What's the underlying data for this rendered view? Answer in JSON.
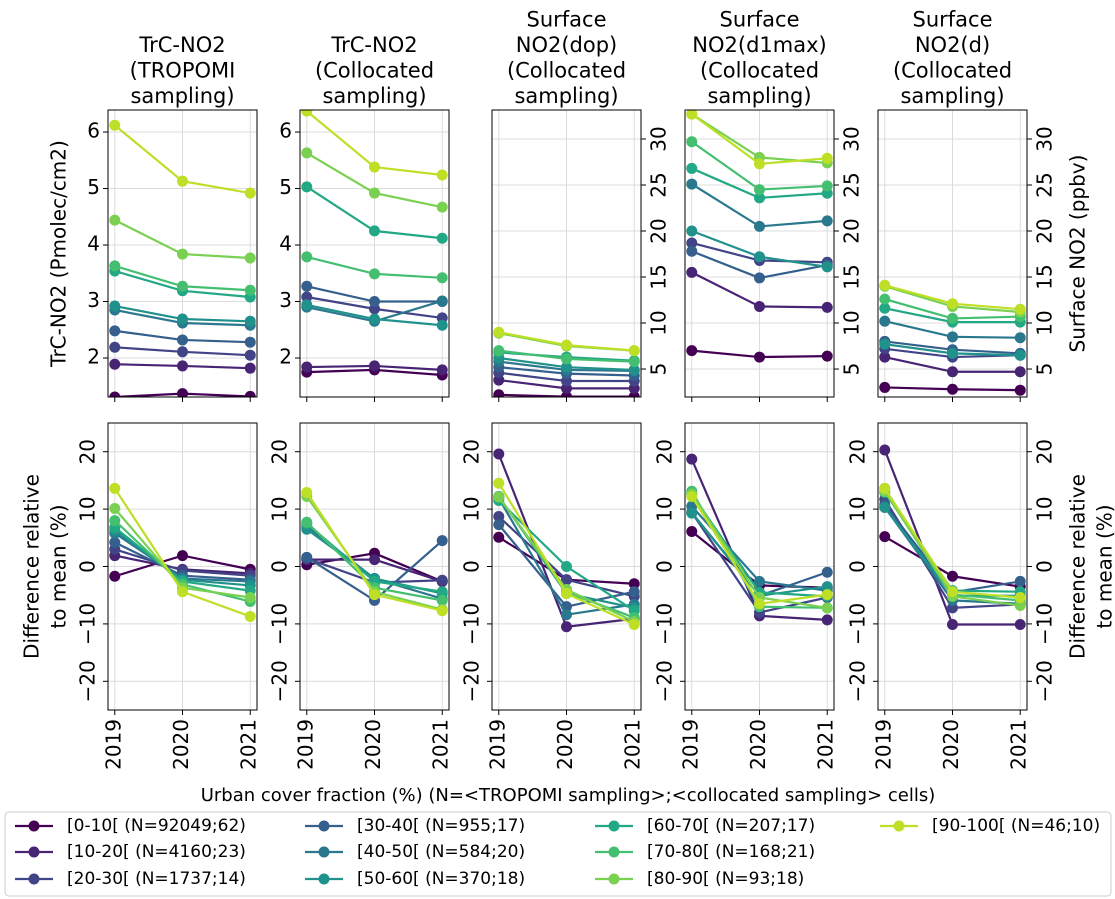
{
  "legend": [
    {
      "name": "[0-10[ (N=92049;62)",
      "color": "#440154"
    },
    {
      "name": "[10-20[ (N=4160;23)",
      "color": "#482475"
    },
    {
      "name": "[20-30[ (N=1737;14)",
      "color": "#414487"
    },
    {
      "name": "[30-40[ (N=955;17)",
      "color": "#355f8d"
    },
    {
      "name": "[40-50[ (N=584;20)",
      "color": "#2a788e"
    },
    {
      "name": "[50-60[ (N=370;18)",
      "color": "#21918c"
    },
    {
      "name": "[60-70[ (N=207;17)",
      "color": "#22a884"
    },
    {
      "name": "[70-80[ (N=168;21)",
      "color": "#44bf70"
    },
    {
      "name": "[80-90[ (N=93;18)",
      "color": "#7ad151"
    },
    {
      "name": "[90-100[ (N=46;10)",
      "color": "#bddf26"
    }
  ],
  "x_label": "Urban cover fraction (%) (N=<TROPOMI sampling>;<collocated sampling> cells)",
  "chart_data": [
    {
      "type": "line",
      "title": [
        "TrC-NO2",
        "(TROPOMI",
        "sampling)"
      ],
      "ylabel": [
        "TrC-NO2 (Pmolec/cm2)"
      ],
      "ylabel_side": "left",
      "x": [
        2019,
        2020,
        2021
      ],
      "xlim": [
        2018.9,
        2021.1
      ],
      "xticks": [
        2019,
        2020,
        2021
      ],
      "show_xtick_labels": false,
      "ylim": [
        1.31,
        6.39
      ],
      "yticks": [
        2,
        3,
        4,
        5,
        6
      ],
      "ytick_side": "left",
      "ytick_rotation": 0,
      "grid": true,
      "series": [
        {
          "values": [
            1.31,
            1.37,
            1.32
          ]
        },
        {
          "values": [
            1.89,
            1.86,
            1.82
          ]
        },
        {
          "values": [
            2.19,
            2.11,
            2.05
          ]
        },
        {
          "values": [
            2.48,
            2.32,
            2.28
          ]
        },
        {
          "values": [
            2.85,
            2.62,
            2.58
          ]
        },
        {
          "values": [
            2.92,
            2.69,
            2.65
          ]
        },
        {
          "values": [
            3.54,
            3.19,
            3.08
          ]
        },
        {
          "values": [
            3.63,
            3.27,
            3.2
          ]
        },
        {
          "values": [
            4.44,
            3.84,
            3.77
          ]
        },
        {
          "values": [
            6.12,
            5.13,
            4.92
          ]
        }
      ]
    },
    {
      "type": "line",
      "title": [
        "TrC-NO2",
        "(Collocated",
        "sampling)"
      ],
      "x": [
        2019,
        2020,
        2021
      ],
      "xlim": [
        2018.9,
        2021.1
      ],
      "xticks": [
        2019,
        2020,
        2021
      ],
      "show_xtick_labels": false,
      "ylim": [
        1.31,
        6.39
      ],
      "yticks": [
        2,
        3,
        4,
        5,
        6
      ],
      "ytick_side": "left",
      "ytick_rotation": 0,
      "grid": true,
      "series": [
        {
          "values": [
            1.75,
            1.79,
            1.7
          ]
        },
        {
          "values": [
            1.84,
            1.86,
            1.79
          ]
        },
        {
          "values": [
            3.08,
            2.87,
            2.71
          ]
        },
        {
          "values": [
            3.27,
            3.0,
            3.0
          ]
        },
        {
          "values": [
            2.9,
            2.65,
            3.01
          ]
        },
        {
          "values": [
            2.94,
            2.69,
            2.58
          ]
        },
        {
          "values": [
            5.03,
            4.25,
            4.12
          ]
        },
        {
          "values": [
            3.79,
            3.49,
            3.42
          ]
        },
        {
          "values": [
            5.63,
            4.92,
            4.67
          ]
        },
        {
          "values": [
            6.37,
            5.38,
            5.24
          ]
        }
      ]
    },
    {
      "type": "line",
      "title": [
        "Surface",
        "NO2(dop)",
        "(Collocated",
        "sampling)"
      ],
      "x": [
        2019,
        2020,
        2021
      ],
      "xlim": [
        2018.9,
        2021.1
      ],
      "xticks": [
        2019,
        2020,
        2021
      ],
      "show_xtick_labels": false,
      "ylim": [
        1.96,
        33.15
      ],
      "yticks": [
        5,
        10,
        15,
        20,
        25,
        30
      ],
      "ytick_side": "right",
      "ytick_rotation": -90,
      "grid": true,
      "series": [
        {
          "values": [
            2.2,
            2.0,
            2.0
          ]
        },
        {
          "values": [
            3.8,
            2.9,
            2.9
          ]
        },
        {
          "values": [
            4.6,
            3.7,
            3.7
          ]
        },
        {
          "values": [
            5.2,
            4.5,
            4.3
          ]
        },
        {
          "values": [
            5.8,
            4.9,
            4.8
          ]
        },
        {
          "values": [
            6.2,
            5.2,
            4.9
          ]
        },
        {
          "values": [
            6.8,
            6.3,
            5.9
          ]
        },
        {
          "values": [
            7.0,
            6.1,
            5.8
          ]
        },
        {
          "values": [
            8.9,
            7.5,
            7.0
          ]
        },
        {
          "values": [
            9.0,
            7.6,
            7.0
          ]
        }
      ]
    },
    {
      "type": "line",
      "title": [
        "Surface",
        "NO2(d1max)",
        "(Collocated",
        "sampling)"
      ],
      "x": [
        2019,
        2020,
        2021
      ],
      "xlim": [
        2018.9,
        2021.1
      ],
      "xticks": [
        2019,
        2020,
        2021
      ],
      "show_xtick_labels": false,
      "ylim": [
        1.96,
        33.15
      ],
      "yticks": [
        5,
        10,
        15,
        20,
        25,
        30
      ],
      "ytick_side": "right",
      "ytick_rotation": -90,
      "grid": true,
      "series": [
        {
          "values": [
            7.0,
            6.3,
            6.4
          ]
        },
        {
          "values": [
            15.5,
            11.8,
            11.7
          ]
        },
        {
          "values": [
            18.7,
            16.8,
            16.6
          ]
        },
        {
          "values": [
            17.8,
            14.9,
            16.3
          ]
        },
        {
          "values": [
            25.1,
            20.5,
            21.1
          ]
        },
        {
          "values": [
            20.0,
            17.2,
            16.1
          ]
        },
        {
          "values": [
            26.8,
            23.6,
            24.1
          ]
        },
        {
          "values": [
            29.7,
            24.5,
            24.9
          ]
        },
        {
          "values": [
            32.7,
            28.0,
            27.4
          ]
        },
        {
          "values": [
            32.7,
            27.3,
            27.9
          ]
        }
      ]
    },
    {
      "type": "line",
      "title": [
        "Surface",
        "NO2(d)",
        "(Collocated",
        "sampling)"
      ],
      "ylabel": [
        "Surface NO2 (ppbv)"
      ],
      "ylabel_side": "right",
      "x": [
        2019,
        2020,
        2021
      ],
      "xlim": [
        2018.9,
        2021.1
      ],
      "xticks": [
        2019,
        2020,
        2021
      ],
      "show_xtick_labels": false,
      "ylim": [
        1.96,
        33.15
      ],
      "yticks": [
        5,
        10,
        15,
        20,
        25,
        30
      ],
      "ytick_side": "right",
      "ytick_rotation": -90,
      "grid": true,
      "series": [
        {
          "values": [
            3.0,
            2.8,
            2.7
          ]
        },
        {
          "values": [
            6.3,
            4.7,
            4.7
          ]
        },
        {
          "values": [
            7.2,
            6.3,
            6.5
          ]
        },
        {
          "values": [
            8.0,
            7.1,
            6.7
          ]
        },
        {
          "values": [
            10.2,
            8.5,
            8.4
          ]
        },
        {
          "values": [
            7.7,
            6.7,
            6.5
          ]
        },
        {
          "values": [
            11.6,
            10.1,
            10.1
          ]
        },
        {
          "values": [
            12.6,
            10.5,
            10.7
          ]
        },
        {
          "values": [
            14.0,
            11.8,
            11.2
          ]
        },
        {
          "values": [
            14.1,
            12.1,
            11.5
          ]
        }
      ]
    },
    {
      "type": "line",
      "ylabel": [
        "Difference relative",
        "to mean (%)"
      ],
      "ylabel_side": "left",
      "x": [
        2019,
        2020,
        2021
      ],
      "xlim": [
        2018.9,
        2021.1
      ],
      "xticks": [
        2019,
        2020,
        2021
      ],
      "show_xtick_labels": true,
      "ylim": [
        -25,
        25
      ],
      "yticks": [
        {
          "value": -20,
          "label": "−20"
        },
        {
          "value": -10,
          "label": "−10"
        },
        0,
        10,
        20
      ],
      "ytick_side": "left",
      "ytick_rotation": -90,
      "grid": true,
      "series": [
        {
          "values": [
            -1.7,
            1.9,
            -0.5
          ]
        },
        {
          "values": [
            1.9,
            -0.5,
            -1.2
          ]
        },
        {
          "values": [
            3.0,
            -0.7,
            -1.6
          ]
        },
        {
          "values": [
            4.2,
            -1.6,
            -2.3
          ]
        },
        {
          "values": [
            5.8,
            -2.1,
            -2.6
          ]
        },
        {
          "values": [
            6.3,
            -2.3,
            -3.3
          ]
        },
        {
          "values": [
            6.8,
            -2.6,
            -4.2
          ]
        },
        {
          "values": [
            8.0,
            -3.1,
            -6.1
          ]
        },
        {
          "values": [
            10.1,
            -3.7,
            -5.4
          ]
        },
        {
          "values": [
            13.6,
            -4.4,
            -8.7
          ]
        }
      ]
    },
    {
      "type": "line",
      "x": [
        2019,
        2020,
        2021
      ],
      "xlim": [
        2018.9,
        2021.1
      ],
      "xticks": [
        2019,
        2020,
        2021
      ],
      "show_xtick_labels": true,
      "ylim": [
        -25,
        25
      ],
      "yticks": [
        {
          "value": -20,
          "label": "−20"
        },
        {
          "value": -10,
          "label": "−10"
        },
        0,
        10,
        20
      ],
      "ytick_side": "left",
      "ytick_rotation": -90,
      "grid": true,
      "series": [
        {
          "values": [
            0.3,
            2.3,
            -2.6
          ]
        },
        {
          "values": [
            1.2,
            1.2,
            -2.6
          ]
        },
        {
          "values": [
            1.4,
            -2.8,
            -2.4
          ]
        },
        {
          "values": [
            1.6,
            -5.9,
            4.5
          ]
        },
        {
          "values": [
            7.0,
            -2.1,
            -5.6
          ]
        },
        {
          "values": [
            6.5,
            -2.1,
            -4.7
          ]
        },
        {
          "values": [
            7.5,
            -2.6,
            -4.4
          ]
        },
        {
          "values": [
            7.7,
            -3.7,
            -5.9
          ]
        },
        {
          "values": [
            12.2,
            -4.4,
            -7.5
          ]
        },
        {
          "values": [
            12.9,
            -4.9,
            -7.7
          ]
        }
      ]
    },
    {
      "type": "line",
      "x": [
        2019,
        2020,
        2021
      ],
      "xlim": [
        2018.9,
        2021.1
      ],
      "xticks": [
        2019,
        2020,
        2021
      ],
      "show_xtick_labels": true,
      "ylim": [
        -25,
        25
      ],
      "yticks": [
        {
          "value": -20,
          "label": "−20"
        },
        {
          "value": -10,
          "label": "−10"
        },
        0,
        10,
        20
      ],
      "ytick_side": "left",
      "ytick_rotation": -90,
      "grid": true,
      "series": [
        {
          "values": [
            5.1,
            -2.3,
            -3.0
          ]
        },
        {
          "values": [
            19.6,
            -10.5,
            -9.1
          ]
        },
        {
          "values": [
            8.7,
            -2.3,
            -5.2
          ]
        },
        {
          "values": [
            7.3,
            -7.0,
            -4.4
          ]
        },
        {
          "values": [
            11.9,
            -8.4,
            -6.6
          ]
        },
        {
          "values": [
            12.2,
            -4.7,
            -7.2
          ]
        },
        {
          "values": [
            11.5,
            0,
            -7.7
          ]
        },
        {
          "values": [
            12.2,
            -4.5,
            -8.9
          ]
        },
        {
          "values": [
            12.1,
            -4.0,
            -9.6
          ]
        },
        {
          "values": [
            14.5,
            -4.7,
            -10.1
          ]
        }
      ]
    },
    {
      "type": "line",
      "x": [
        2019,
        2020,
        2021
      ],
      "xlim": [
        2018.9,
        2021.1
      ],
      "xticks": [
        2019,
        2020,
        2021
      ],
      "show_xtick_labels": true,
      "ylim": [
        -25,
        25
      ],
      "yticks": [
        {
          "value": -20,
          "label": "−20"
        },
        {
          "value": -10,
          "label": "−10"
        },
        0,
        10,
        20
      ],
      "ytick_side": "left",
      "ytick_rotation": -90,
      "grid": true,
      "series": [
        {
          "values": [
            6.1,
            -3.3,
            -3.7
          ]
        },
        {
          "values": [
            18.7,
            -8.6,
            -9.3
          ]
        },
        {
          "values": [
            9.4,
            -8.0,
            -5.4
          ]
        },
        {
          "values": [
            9.4,
            -5.1,
            -1.0
          ]
        },
        {
          "values": [
            10.5,
            -2.6,
            -4.2
          ]
        },
        {
          "values": [
            9.3,
            -5.1,
            -3.5
          ]
        },
        {
          "values": [
            12.6,
            -4.5,
            -5.2
          ]
        },
        {
          "values": [
            13.1,
            -7.0,
            -7.2
          ]
        },
        {
          "values": [
            12.6,
            -5.4,
            -7.2
          ]
        },
        {
          "values": [
            12.2,
            -6.5,
            -4.9
          ]
        }
      ]
    },
    {
      "type": "line",
      "ylabel": [
        "Difference relative",
        "to mean (%)"
      ],
      "ylabel_side": "right",
      "x": [
        2019,
        2020,
        2021
      ],
      "xlim": [
        2018.9,
        2021.1
      ],
      "xticks": [
        2019,
        2020,
        2021
      ],
      "show_xtick_labels": true,
      "ylim": [
        -25,
        25
      ],
      "yticks": [
        {
          "value": -20,
          "label": "−20"
        },
        {
          "value": -10,
          "label": "−10"
        },
        0,
        10,
        20
      ],
      "ytick_side": "both",
      "ytick_rotation": -90,
      "grid": true,
      "series": [
        {
          "values": [
            5.2,
            -1.7,
            -3.5
          ]
        },
        {
          "values": [
            20.3,
            -10.1,
            -10.1
          ]
        },
        {
          "values": [
            11.7,
            -7.2,
            -6.6
          ]
        },
        {
          "values": [
            10.8,
            -4.5,
            -2.6
          ]
        },
        {
          "values": [
            10.3,
            -5.9,
            -6.5
          ]
        },
        {
          "values": [
            10.3,
            -5.1,
            -5.1
          ]
        },
        {
          "values": [
            12.9,
            -4.2,
            -4.4
          ]
        },
        {
          "values": [
            13.6,
            -4.9,
            -5.9
          ]
        },
        {
          "values": [
            13.1,
            -5.2,
            -6.8
          ]
        },
        {
          "values": [
            13.6,
            -4.4,
            -5.4
          ]
        }
      ]
    }
  ]
}
